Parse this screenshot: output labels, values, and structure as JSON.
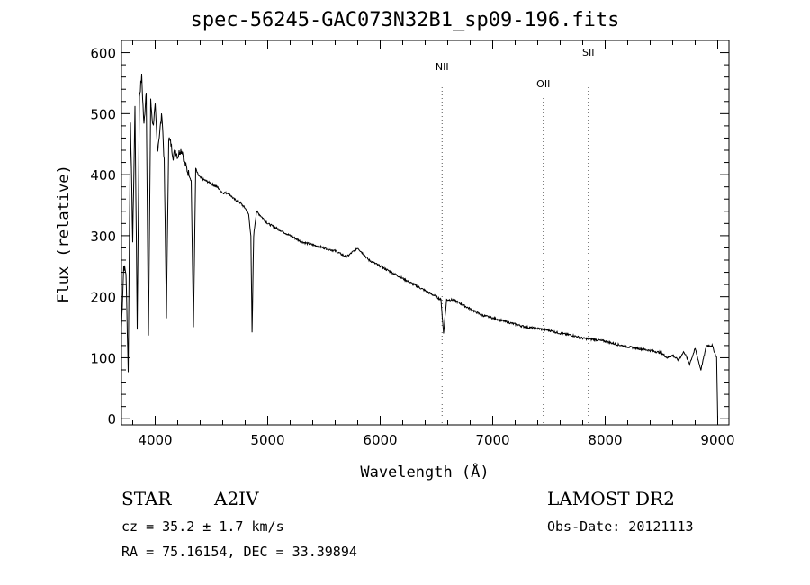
{
  "chart_data": {
    "type": "line",
    "title": "spec-56245-GAC073N32B1_sp09-196.fits",
    "xlabel": "Wavelength (Å)",
    "ylabel": "Flux (relative)",
    "xlim": [
      3700,
      9100
    ],
    "ylim": [
      -10,
      620
    ],
    "xticks": [
      4000,
      5000,
      6000,
      7000,
      8000,
      9000
    ],
    "yticks": [
      0,
      100,
      200,
      300,
      400,
      500,
      600
    ],
    "grid": false,
    "series": [
      {
        "x": [
          3700,
          3720,
          3740,
          3760,
          3780,
          3800,
          3820,
          3840,
          3860,
          3880,
          3900,
          3920,
          3940,
          3960,
          3980,
          4000,
          4020,
          4040,
          4060,
          4080,
          4100,
          4120,
          4140,
          4160,
          4180,
          4200,
          4220,
          4240,
          4260,
          4280,
          4300,
          4320,
          4340,
          4360,
          4380,
          4400,
          4450,
          4500,
          4550,
          4600,
          4650,
          4700,
          4750,
          4800,
          4830,
          4850,
          4861,
          4875,
          4900,
          4950,
          5000,
          5100,
          5200,
          5300,
          5400,
          5500,
          5600,
          5700,
          5800,
          5850,
          5900,
          6000,
          6100,
          6200,
          6300,
          6400,
          6500,
          6540,
          6563,
          6590,
          6650,
          6700,
          6800,
          6900,
          7000,
          7100,
          7200,
          7300,
          7400,
          7500,
          7600,
          7700,
          7800,
          7900,
          8000,
          8100,
          8200,
          8300,
          8400,
          8500,
          8550,
          8600,
          8650,
          8700,
          8750,
          8800,
          8850,
          8900,
          8950,
          8990,
          9000
        ],
        "values": [
          150,
          250,
          240,
          80,
          490,
          290,
          510,
          150,
          530,
          560,
          480,
          540,
          130,
          520,
          480,
          510,
          440,
          470,
          500,
          420,
          170,
          460,
          450,
          430,
          440,
          430,
          440,
          440,
          420,
          410,
          400,
          390,
          150,
          410,
          400,
          395,
          390,
          385,
          380,
          370,
          370,
          360,
          355,
          345,
          335,
          300,
          140,
          300,
          340,
          330,
          320,
          310,
          300,
          290,
          285,
          280,
          275,
          265,
          280,
          270,
          260,
          250,
          240,
          230,
          220,
          210,
          200,
          195,
          140,
          195,
          195,
          190,
          180,
          170,
          165,
          160,
          155,
          150,
          148,
          145,
          140,
          137,
          132,
          130,
          127,
          122,
          118,
          115,
          112,
          108,
          100,
          104,
          96,
          110,
          90,
          115,
          80,
          120,
          120,
          100,
          0
        ]
      }
    ],
    "line_markers": [
      {
        "label": "NII",
        "x": 6550
      },
      {
        "label": "OII",
        "x": 7450
      },
      {
        "label": "SII",
        "x": 7850
      }
    ]
  },
  "info": {
    "object_class": "STAR",
    "subclass": "A2IV",
    "survey": "LAMOST DR2",
    "cz": "cz = 35.2 ± 1.7 km/s",
    "obs_date": "Obs-Date: 20121113",
    "coords": "RA =  75.16154, DEC =  33.39894"
  },
  "colors": {
    "line": "#000000",
    "background": "#ffffff",
    "marker": "#555555"
  }
}
